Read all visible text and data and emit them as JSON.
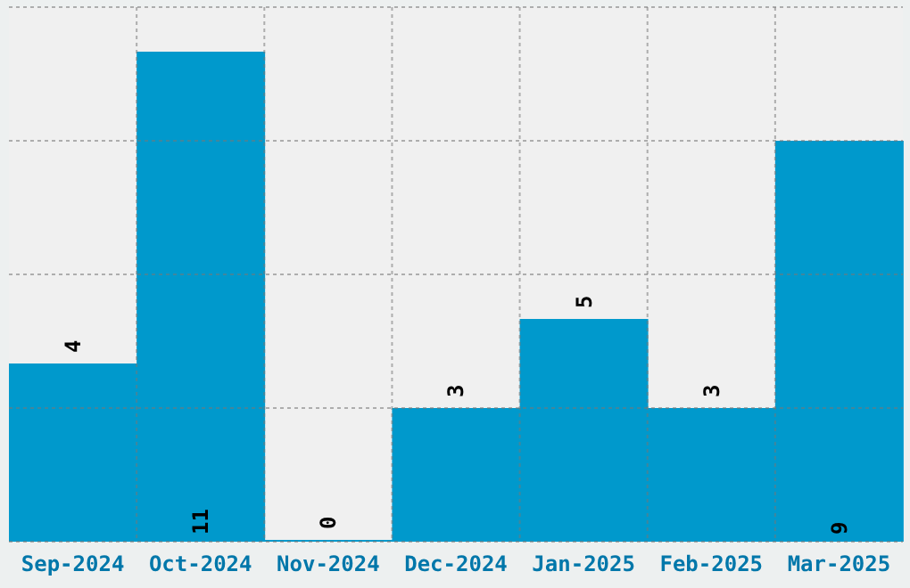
{
  "chart_data": {
    "type": "bar",
    "categories": [
      "Sep-2024",
      "Oct-2024",
      "Nov-2024",
      "Dec-2024",
      "Jan-2025",
      "Feb-2025",
      "Mar-2025"
    ],
    "values": [
      4,
      11,
      0,
      3,
      5,
      3,
      9
    ],
    "color": "#0099cc",
    "ylim": [
      0,
      12
    ],
    "yticks": [
      {
        "value": 0,
        "label": null
      },
      {
        "value": 3,
        "label": null
      },
      {
        "value": 6,
        "label": null
      },
      {
        "value": 9,
        "label": null
      },
      {
        "value": 12,
        "label": null
      }
    ],
    "tick_labels": "x",
    "grid": true,
    "data_labels": true,
    "legend": false
  }
}
